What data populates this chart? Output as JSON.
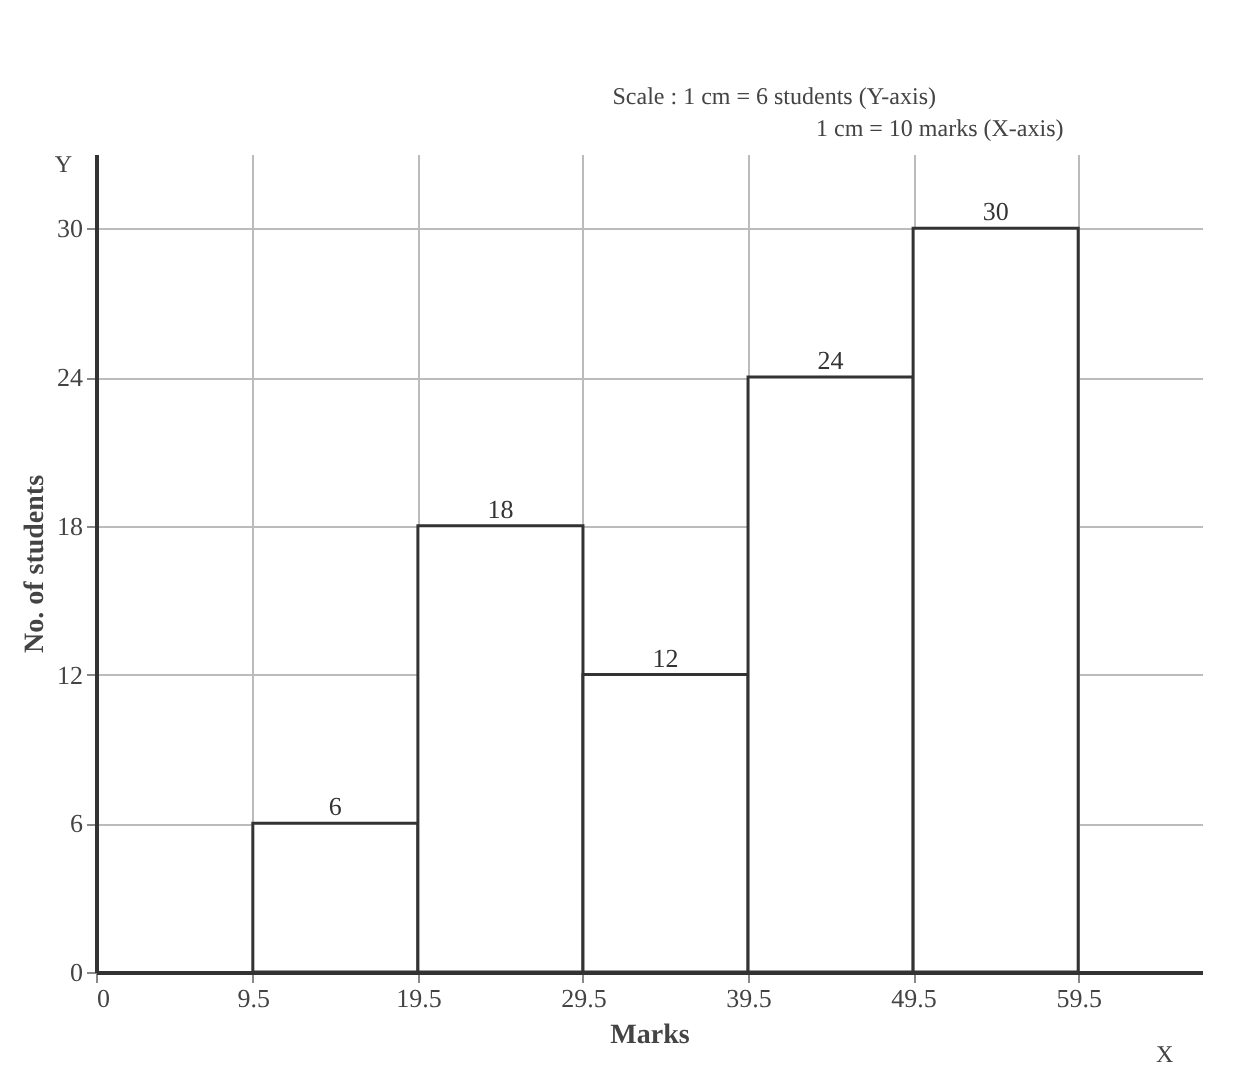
{
  "chart_data": {
    "type": "histogram",
    "xlabel": "Marks",
    "ylabel": "No. of students",
    "bins": [
      9.5,
      19.5,
      29.5,
      39.5,
      49.5,
      59.5
    ],
    "values": [
      6,
      18,
      12,
      24,
      30
    ],
    "color": "#ffffff",
    "data_labels": true,
    "xlim": [
      0,
      67
    ],
    "ylim": [
      0,
      33
    ],
    "xticks": [
      0,
      9.5,
      19.5,
      29.5,
      39.5,
      49.5,
      59.5
    ],
    "yticks": [
      0,
      6,
      12,
      18,
      24,
      30
    ],
    "grid": true,
    "annotations": [
      "Scale : 1 cm = 6 students (Y-axis)",
      "1 cm = 10 marks (X-axis)",
      "Y",
      "X"
    ]
  }
}
